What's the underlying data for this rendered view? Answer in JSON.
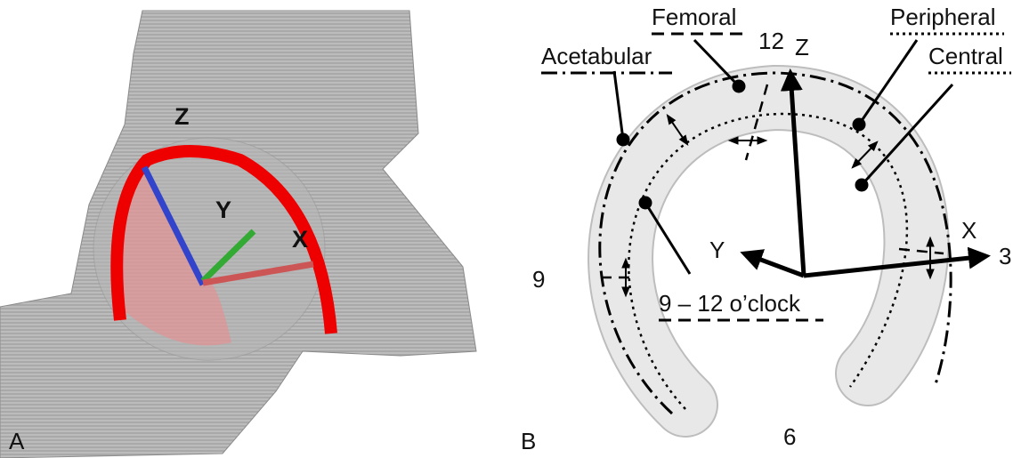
{
  "panel_a": {
    "label": "A",
    "axes": {
      "z": "Z",
      "y": "Y",
      "x": "X"
    }
  },
  "panel_b": {
    "label": "B",
    "femoral": "Femoral",
    "acetabular": "Acetabular",
    "peripheral": "Peripheral",
    "central": "Central",
    "clock_12": "12",
    "clock_3": "3",
    "clock_6": "6",
    "clock_9": "9",
    "region": "9 – 12 o’clock",
    "axes": {
      "z": "Z",
      "y": "Y",
      "x": "X"
    }
  }
}
